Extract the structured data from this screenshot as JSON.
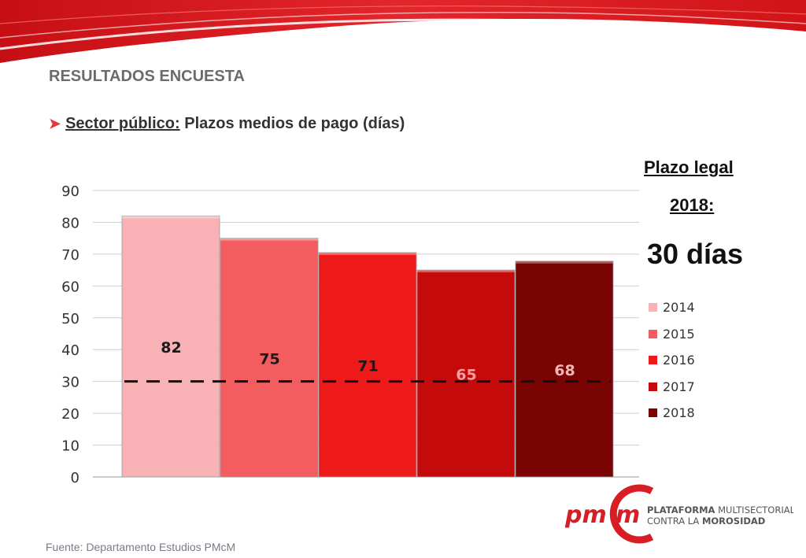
{
  "header": {
    "title": "RESULTADOS ENCUESTA",
    "subtitle_underlined": "Sector público:",
    "subtitle_rest": " Plazos medios de pago (días)"
  },
  "legal": {
    "line1": "Plazo legal",
    "line2": "2018:",
    "days": "30 días"
  },
  "chart_data": {
    "type": "bar",
    "categories": [
      "2014",
      "2015",
      "2016",
      "2017",
      "2018"
    ],
    "values": [
      82,
      75,
      71,
      65,
      68
    ],
    "bar_heights": [
      82,
      75,
      70.5,
      65,
      67.8
    ],
    "colors": [
      "#f8b2b5",
      "#f45d5f",
      "#ee1a1a",
      "#c40a0a",
      "#7a0303"
    ],
    "label_colors": [
      "#1a1a1a",
      "#1a1a1a",
      "#1a1a1a",
      "#f6a0a0",
      "#f2b6b6"
    ],
    "ylim": [
      0,
      90
    ],
    "yticks": [
      0,
      10,
      20,
      30,
      40,
      50,
      60,
      70,
      80,
      90
    ],
    "reference_line": 30,
    "grid": true,
    "legend_position": "right"
  },
  "logo": {
    "mark": "pm",
    "mark2": "m",
    "line1_bold": "PLATAFORMA",
    "line1_rest": " MULTISECTORIAL",
    "line2_rest": "CONTRA LA ",
    "line2_bold": "MOROSIDAD"
  },
  "footer": {
    "source": "Fuente: Departamento Estudios PMcM"
  }
}
